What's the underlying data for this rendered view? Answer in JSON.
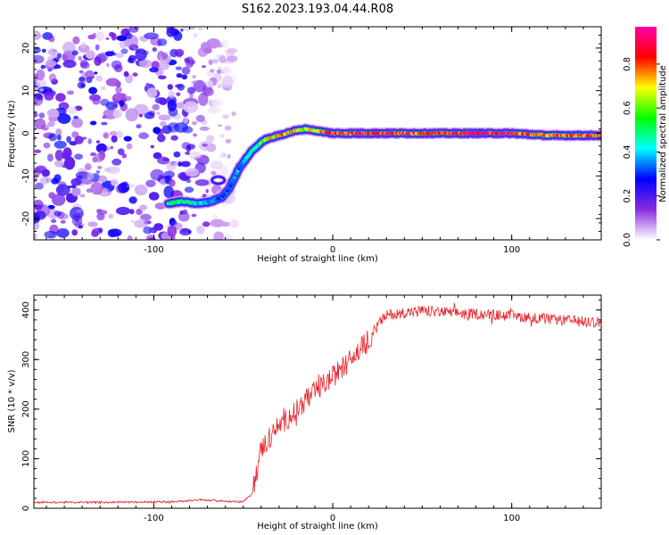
{
  "title": "S162.2023.193.04.44.R08",
  "chart_data": [
    {
      "type": "heatmap",
      "xlabel": "Height of straight line (km)",
      "ylabel": "Frequency (Hz)",
      "xlim": [
        -167,
        150
      ],
      "ylim": [
        -25,
        25
      ],
      "xticks": [
        -100,
        0,
        100
      ],
      "yticks": [
        -20,
        -10,
        0,
        10,
        20
      ],
      "colorbar": {
        "label": "Normalized spectral amplitude",
        "range": [
          0,
          0.97
        ],
        "ticks": [
          0.0,
          0.2,
          0.4,
          0.6,
          0.8
        ],
        "tick_labels": [
          "0.0",
          "0.2",
          "0.4",
          "0.6",
          "0.8"
        ],
        "colormap": [
          "#ffffff",
          "#8a2be2",
          "#0000ff",
          "#00ffff",
          "#00ff00",
          "#ffff00",
          "#ff0000",
          "#ff00aa"
        ]
      },
      "ridge": {
        "description_free": true,
        "x": [
          -92,
          -85,
          -75,
          -68,
          -62,
          -58,
          -52,
          -45,
          -38,
          -30,
          -22,
          -15,
          -8,
          0,
          20,
          50,
          80,
          100,
          120,
          150
        ],
        "y": [
          -16.5,
          -16,
          -16.5,
          -16,
          -15,
          -13,
          -8,
          -4,
          -1.5,
          -0.5,
          0.5,
          1,
          0.5,
          0,
          0,
          0,
          0,
          0,
          -0.5,
          -0.5
        ],
        "amplitude": [
          0.45,
          0.5,
          0.4,
          0.35,
          0.3,
          0.3,
          0.35,
          0.45,
          0.6,
          0.75,
          0.7,
          0.6,
          0.7,
          0.8,
          0.85,
          0.8,
          0.9,
          0.85,
          0.75,
          0.8
        ]
      },
      "noise_region": {
        "x_range": [
          -167,
          -55
        ],
        "amplitude_max": 0.25
      }
    },
    {
      "type": "line",
      "xlabel": "Height of straight line (km)",
      "ylabel": "SNR (10 * v/v)",
      "xlim": [
        -167,
        150
      ],
      "ylim": [
        0,
        430
      ],
      "xticks": [
        -100,
        0,
        100
      ],
      "yticks": [
        0,
        100,
        200,
        300,
        400
      ],
      "color": "#e8242a",
      "series": [
        {
          "x": [
            -167,
            -120,
            -90,
            -75,
            -60,
            -50,
            -45,
            -40,
            -30,
            -20,
            -10,
            0,
            10,
            20,
            25,
            30,
            40,
            50,
            75,
            100,
            125,
            150
          ],
          "y": [
            12,
            12,
            13,
            17,
            14,
            13,
            30,
            120,
            165,
            200,
            235,
            265,
            300,
            340,
            370,
            390,
            395,
            398,
            393,
            388,
            380,
            375
          ]
        }
      ]
    }
  ]
}
